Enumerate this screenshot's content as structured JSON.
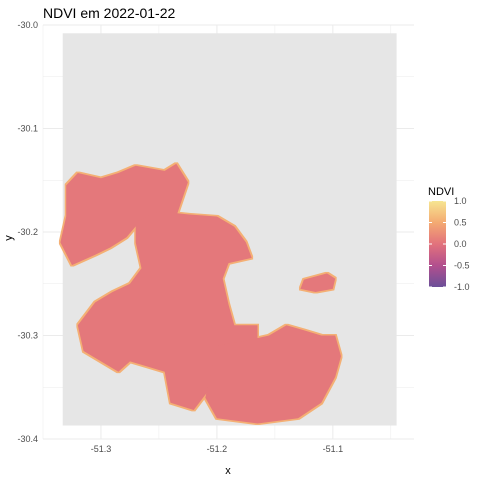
{
  "chart_data": {
    "type": "heatmap",
    "title": "NDVI em 2022-01-22",
    "xlabel": "x",
    "ylabel": "y",
    "x_ticks": [
      -51.3,
      -51.2,
      -51.1
    ],
    "x_tick_labels": [
      "-51.3",
      "-51.2",
      "-51.1"
    ],
    "y_ticks": [
      -30.0,
      -30.1,
      -30.2,
      -30.3,
      -30.4
    ],
    "y_tick_labels": [
      "-30.0",
      "-30.1",
      "-30.2",
      "-30.3",
      "-30.4"
    ],
    "xlim": [
      -51.35,
      -51.03
    ],
    "ylim": [
      -30.4,
      -30.0
    ],
    "panel_background": "#ebebeb",
    "na_region": {
      "xlim": [
        -51.333,
        -51.045
      ],
      "ylim": [
        -30.387,
        -30.008
      ],
      "color": "#e6e6e6"
    },
    "grid": true,
    "legend": {
      "title": "NDVI",
      "position": "right",
      "breaks": [
        1.0,
        0.5,
        0.0,
        -0.5,
        -1.0
      ],
      "labels": [
        "1.0",
        "0.5",
        "0.0",
        "-0.5",
        "-1.0"
      ],
      "limits": [
        -1.0,
        1.0
      ],
      "colors": [
        "#f6e591",
        "#f4aa72",
        "#e2727c",
        "#b24f8e",
        "#6b4f98"
      ]
    },
    "typical_value": 0.05,
    "regions": [
      {
        "name": "western-block",
        "coords": [
          [
            -51.33,
            -30.155
          ],
          [
            -51.32,
            -30.143
          ],
          [
            -51.3,
            -30.148
          ],
          [
            -51.285,
            -30.143
          ],
          [
            -51.27,
            -30.136
          ],
          [
            -51.245,
            -30.141
          ],
          [
            -51.235,
            -30.134
          ],
          [
            -51.225,
            -30.152
          ],
          [
            -51.235,
            -30.185
          ],
          [
            -51.265,
            -30.188
          ],
          [
            -51.278,
            -30.205
          ],
          [
            -51.292,
            -30.215
          ],
          [
            -51.305,
            -30.222
          ],
          [
            -51.325,
            -30.232
          ],
          [
            -51.335,
            -30.21
          ],
          [
            -51.33,
            -30.185
          ]
        ]
      },
      {
        "name": "central-block",
        "coords": [
          [
            -51.27,
            -30.19
          ],
          [
            -51.25,
            -30.18
          ],
          [
            -51.225,
            -30.183
          ],
          [
            -51.2,
            -30.185
          ],
          [
            -51.185,
            -30.195
          ],
          [
            -51.175,
            -30.21
          ],
          [
            -51.17,
            -30.225
          ],
          [
            -51.19,
            -30.23
          ],
          [
            -51.195,
            -30.245
          ],
          [
            -51.19,
            -30.27
          ],
          [
            -51.185,
            -30.29
          ],
          [
            -51.165,
            -30.29
          ],
          [
            -51.165,
            -30.305
          ],
          [
            -51.18,
            -30.315
          ],
          [
            -51.195,
            -30.33
          ],
          [
            -51.205,
            -30.35
          ],
          [
            -51.22,
            -30.372
          ],
          [
            -51.24,
            -30.365
          ],
          [
            -51.245,
            -30.335
          ],
          [
            -51.26,
            -30.33
          ],
          [
            -51.275,
            -30.325
          ],
          [
            -51.285,
            -30.335
          ],
          [
            -51.3,
            -30.325
          ],
          [
            -51.315,
            -30.315
          ],
          [
            -51.32,
            -30.29
          ],
          [
            -51.305,
            -30.268
          ],
          [
            -51.29,
            -30.258
          ],
          [
            -51.275,
            -30.25
          ],
          [
            -51.265,
            -30.235
          ],
          [
            -51.27,
            -30.21
          ]
        ]
      },
      {
        "name": "southeast-block",
        "coords": [
          [
            -51.2,
            -30.31
          ],
          [
            -51.175,
            -30.305
          ],
          [
            -51.155,
            -30.3
          ],
          [
            -51.14,
            -30.29
          ],
          [
            -51.125,
            -30.295
          ],
          [
            -51.11,
            -30.3
          ],
          [
            -51.098,
            -30.3
          ],
          [
            -51.093,
            -30.32
          ],
          [
            -51.098,
            -30.34
          ],
          [
            -51.11,
            -30.365
          ],
          [
            -51.13,
            -30.38
          ],
          [
            -51.165,
            -30.385
          ],
          [
            -51.2,
            -30.38
          ],
          [
            -51.21,
            -30.36
          ]
        ]
      },
      {
        "name": "east-spot",
        "coords": [
          [
            -51.125,
            -30.246
          ],
          [
            -51.105,
            -30.24
          ],
          [
            -51.098,
            -30.245
          ],
          [
            -51.1,
            -30.255
          ],
          [
            -51.115,
            -30.258
          ],
          [
            -51.128,
            -30.255
          ]
        ]
      }
    ]
  }
}
